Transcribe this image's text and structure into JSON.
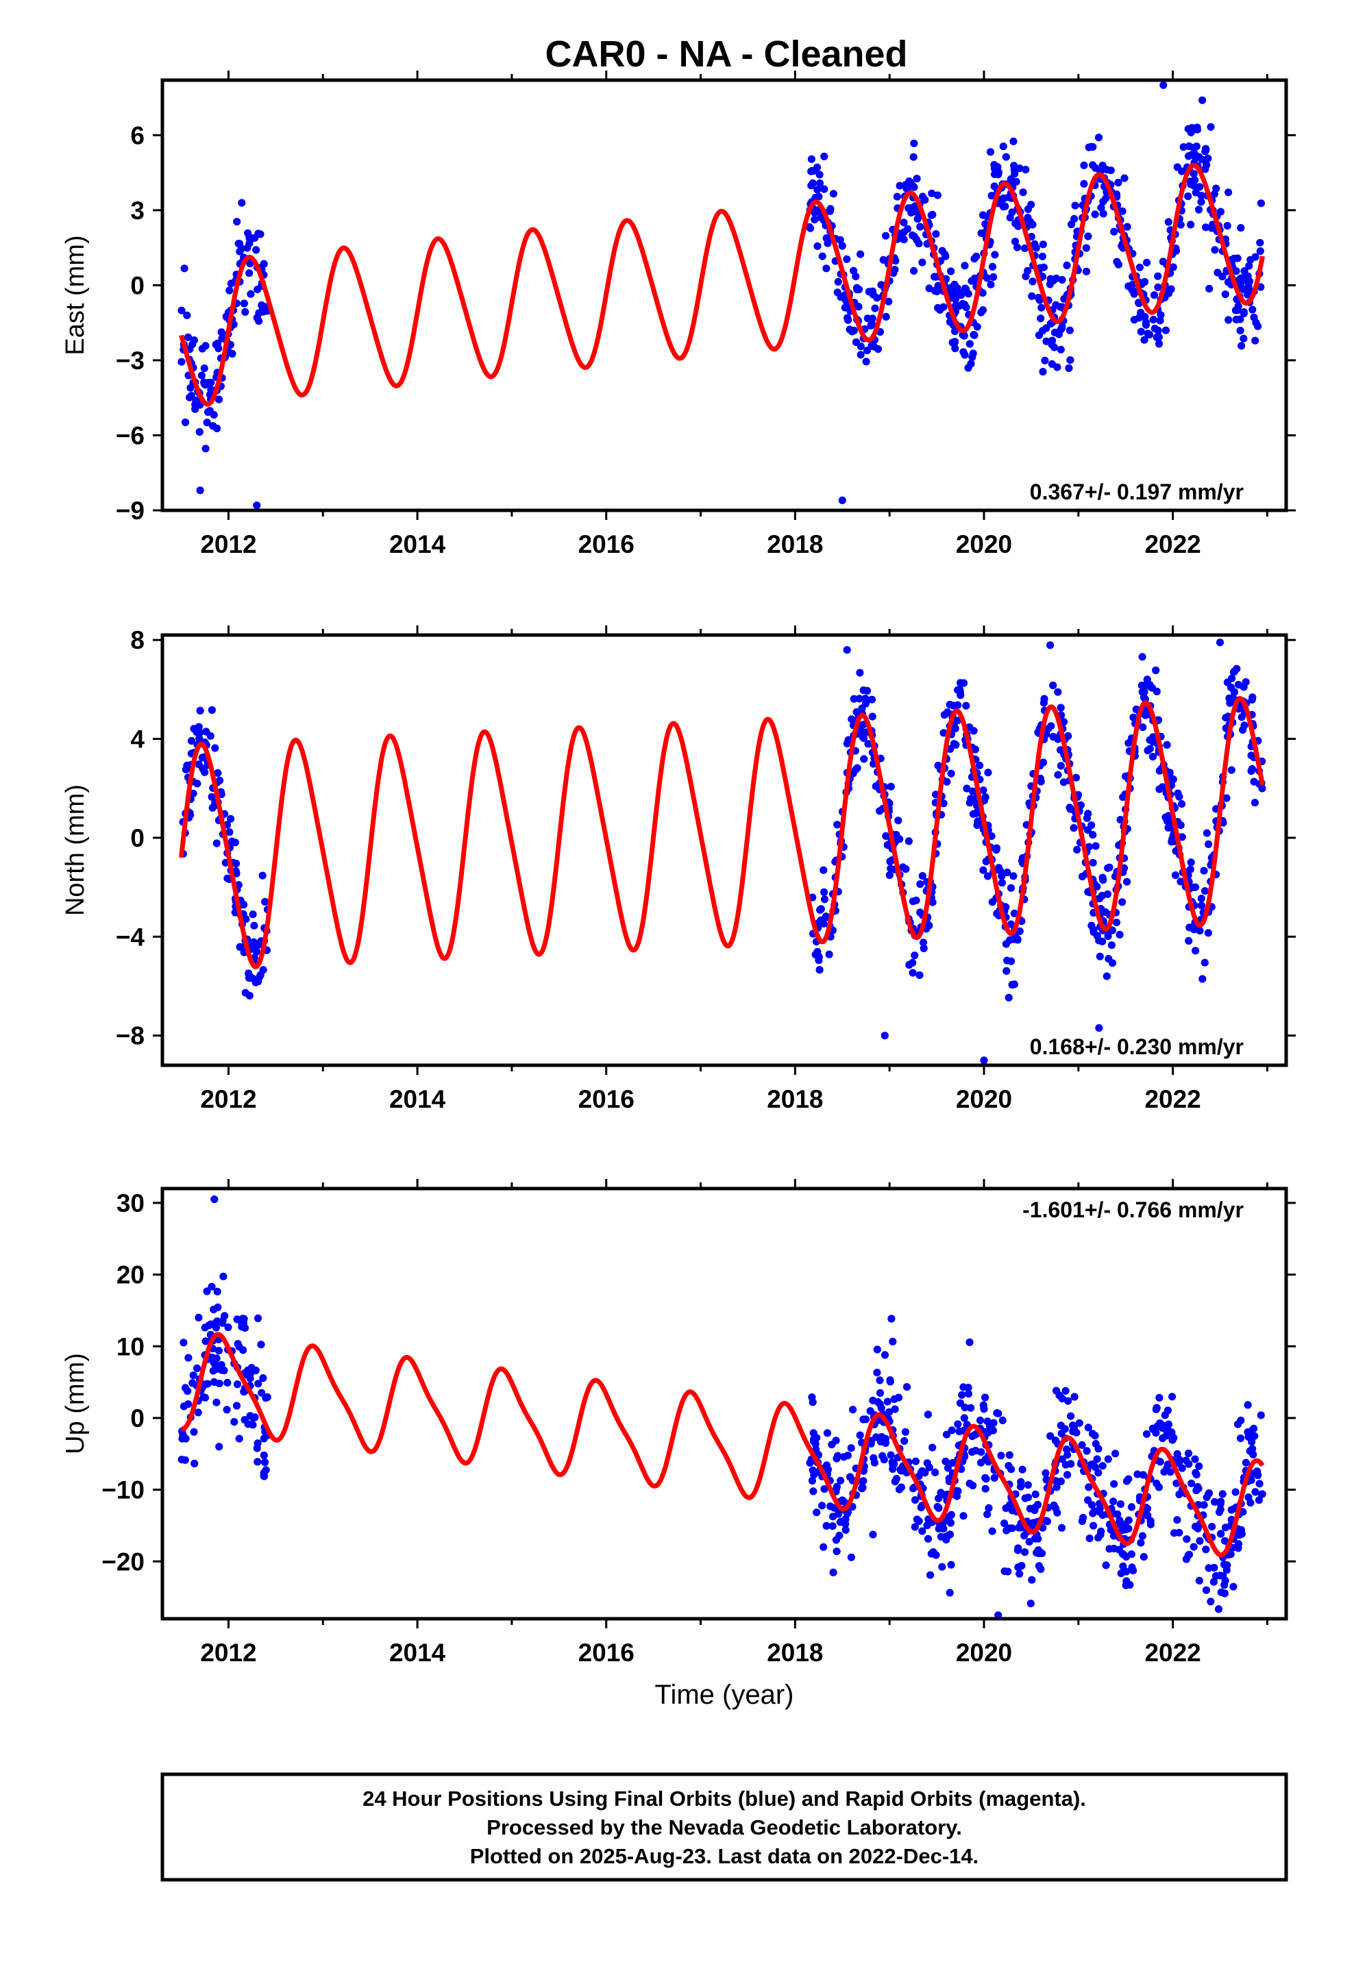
{
  "title": "CAR0  - NA - Cleaned",
  "chart_data": [
    {
      "type": "scatter",
      "ylabel": "East (mm)",
      "xlabel": "",
      "xlim": [
        2011.3,
        2023.2
      ],
      "ylim": [
        -9,
        8.2
      ],
      "xticks": [
        2012,
        2014,
        2016,
        2018,
        2020,
        2022
      ],
      "yticks": [
        -9,
        -6,
        -3,
        0,
        3,
        6
      ],
      "rate_text": "0.367+/- 0.197 mm/yr",
      "rate_position": "bottom-right",
      "colors": {
        "points": "#0000ff",
        "model": "#ff0000"
      },
      "model": {
        "offset": -2.0,
        "rate": 0.367,
        "amplitude": 2.8,
        "phase_year": 2012.0,
        "amp2": 0.3,
        "start": 2011.5,
        "end": 2022.95
      },
      "observed_segments": [
        [
          2011.5,
          2012.42
        ],
        [
          2018.15,
          2022.95
        ]
      ],
      "noise_sd": 1.1,
      "outliers": [
        [
          2021.9,
          8.0
        ],
        [
          2012.3,
          -8.8
        ],
        [
          2018.5,
          -8.6
        ],
        [
          2011.7,
          -8.2
        ]
      ]
    },
    {
      "type": "scatter",
      "ylabel": "North (mm)",
      "xlabel": "",
      "xlim": [
        2011.3,
        2023.2
      ],
      "ylim": [
        -9.2,
        8.2
      ],
      "xticks": [
        2012,
        2014,
        2016,
        2018,
        2020,
        2022
      ],
      "yticks": [
        -8,
        -4,
        0,
        4,
        8
      ],
      "rate_text": "0.168+/- 0.230 mm/yr",
      "rate_position": "bottom-right",
      "colors": {
        "points": "#0000ff",
        "model": "#ff0000"
      },
      "model": {
        "offset": -0.8,
        "rate": 0.168,
        "amplitude": 4.4,
        "phase_year": 2011.5,
        "amp2": 0.6,
        "start": 2011.5,
        "end": 2022.95
      },
      "observed_segments": [
        [
          2011.5,
          2012.42
        ],
        [
          2018.15,
          2022.95
        ]
      ],
      "noise_sd": 1.0,
      "outliers": [
        [
          2020.0,
          -9.0
        ],
        [
          2018.95,
          -8.0
        ],
        [
          2022.5,
          7.9
        ],
        [
          2018.55,
          7.6
        ]
      ]
    },
    {
      "type": "scatter",
      "ylabel": "Up (mm)",
      "xlabel": "Time (year)",
      "xlim": [
        2011.3,
        2023.2
      ],
      "ylim": [
        -28,
        32
      ],
      "xticks": [
        2012,
        2014,
        2016,
        2018,
        2020,
        2022
      ],
      "yticks": [
        -20,
        -10,
        0,
        10,
        20,
        30
      ],
      "rate_text": "-1.601+/- 0.766 mm/yr",
      "rate_position": "top-right",
      "colors": {
        "points": "#0000ff",
        "model": "#ff0000"
      },
      "model": {
        "offset": 5.4,
        "rate": -1.601,
        "amplitude": 6.3,
        "phase_year": 2011.7,
        "amp2": 1.5,
        "start": 2011.5,
        "end": 2022.95
      },
      "observed_segments": [
        [
          2011.5,
          2012.42
        ],
        [
          2018.15,
          2022.95
        ]
      ],
      "noise_sd": 4.5,
      "outliers": [
        [
          2011.85,
          30.5
        ],
        [
          2011.9,
          -4.0
        ],
        [
          2020.15,
          -27.5
        ],
        [
          2018.3,
          -18.0
        ]
      ]
    }
  ],
  "footer": {
    "line1": "24 Hour Positions Using Final Orbits (blue) and Rapid Orbits (magenta).",
    "line2": "Processed by the Nevada Geodetic Laboratory.",
    "line3": "Plotted on 2025-Aug-23. Last data on 2022-Dec-14."
  }
}
